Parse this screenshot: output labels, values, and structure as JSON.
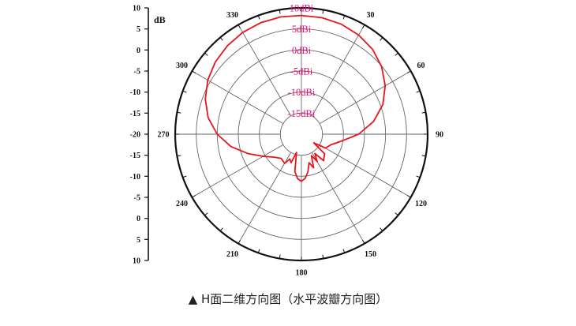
{
  "caption": "▲ H面二维方向图（水平波瓣方向图）",
  "chart_data": {
    "type": "polar-line",
    "ylabel": "dB",
    "radial_unit": "dBi",
    "radial_range": [
      -20,
      10
    ],
    "radial_rings": [
      -15,
      -10,
      -5,
      0,
      5,
      10
    ],
    "radial_labels": [
      "-15dBi",
      "-10dBi",
      "-5dBi",
      "0dBi",
      "5dBi",
      "10dBi"
    ],
    "left_axis_ticks": [
      "10",
      "5",
      "0",
      "-5",
      "-10",
      "-15",
      "-20",
      "-15",
      "-10",
      "-5",
      "0",
      "5",
      "10"
    ],
    "left_axis_values": [
      10,
      5,
      0,
      -5,
      -10,
      -15,
      -20,
      -15,
      -10,
      -5,
      0,
      5,
      10
    ],
    "angle_ticks": [
      0,
      30,
      60,
      90,
      120,
      150,
      180,
      210,
      240,
      270,
      300,
      330
    ],
    "angle_labels": [
      "",
      "30",
      "60",
      "90",
      "120",
      "150",
      "180",
      "210",
      "240",
      "270",
      "300",
      "330"
    ],
    "grid": true,
    "line_color": "#e8141c",
    "series": [
      {
        "angle_deg": [
          0,
          10,
          20,
          30,
          40,
          50,
          60,
          70,
          80,
          90,
          100,
          110,
          120,
          125,
          130,
          140,
          145,
          150,
          155,
          160,
          165,
          170,
          175,
          180,
          185,
          190,
          195,
          200,
          205,
          210,
          220,
          230,
          240,
          250,
          260,
          270,
          280,
          290,
          300,
          310,
          320,
          330,
          340,
          350
        ],
        "values_dbi": [
          8.2,
          8.1,
          7.8,
          7.2,
          6.3,
          4.9,
          3.0,
          0.6,
          -2.6,
          -6.4,
          -10.4,
          -12.6,
          -13.4,
          -16.4,
          -12.8,
          -11.8,
          -14.4,
          -12.5,
          -14.4,
          -11.5,
          -13.0,
          -11.0,
          -9.5,
          -8.8,
          -9.4,
          -11.0,
          -15.5,
          -12.8,
          -13.5,
          -12.0,
          -12.5,
          -11.5,
          -9.5,
          -6.5,
          -3.0,
          0.0,
          2.5,
          4.3,
          5.7,
          6.7,
          7.4,
          7.9,
          8.2,
          8.3
        ]
      }
    ]
  }
}
